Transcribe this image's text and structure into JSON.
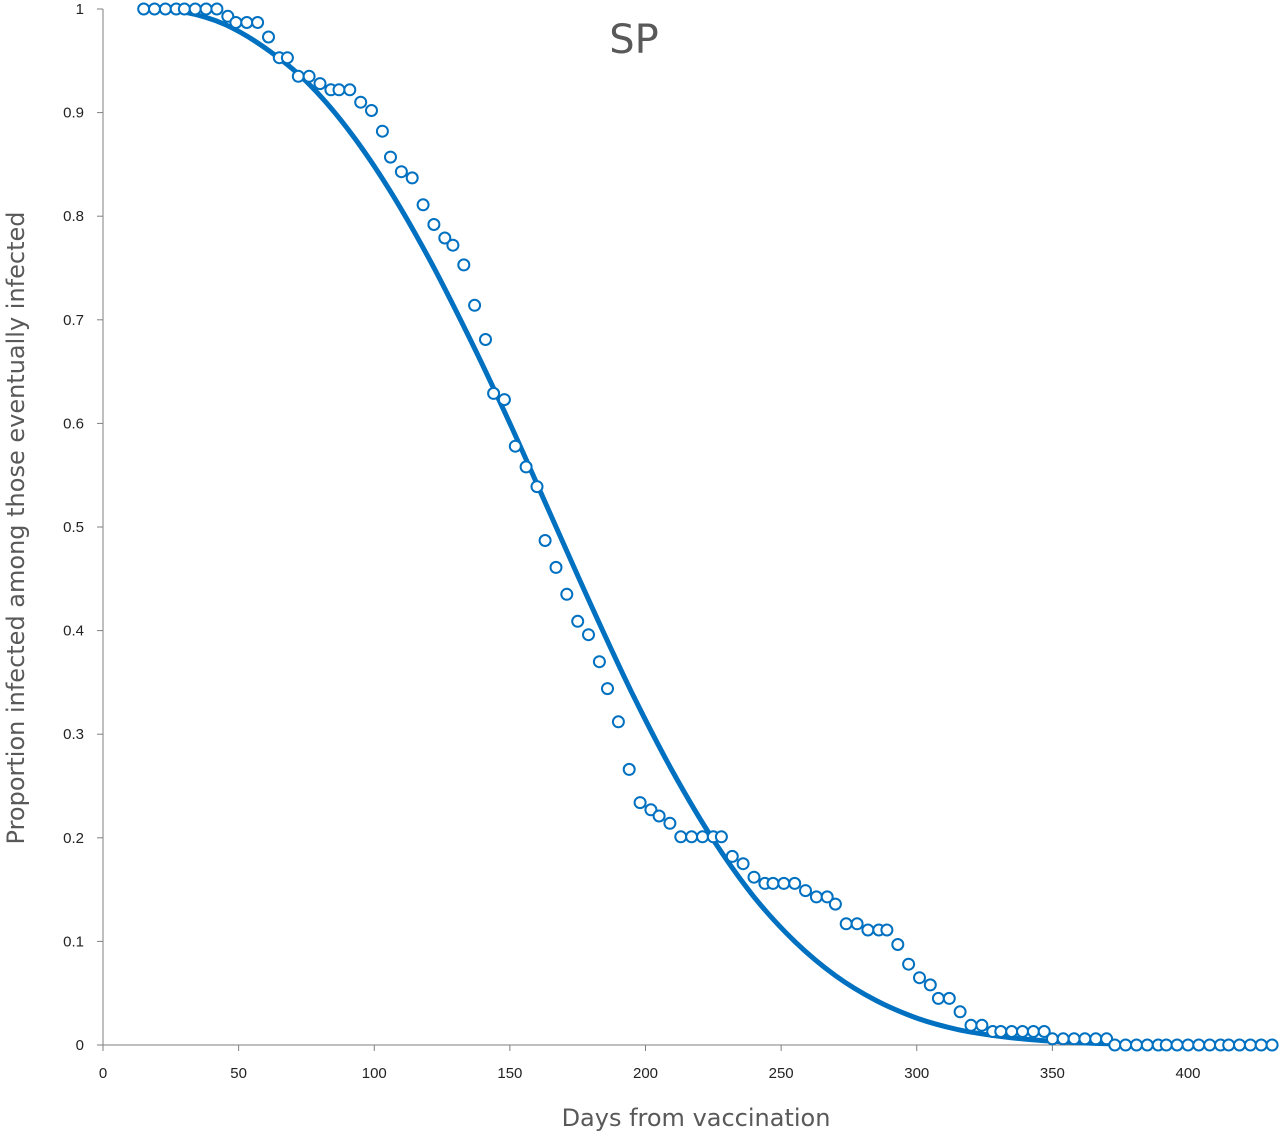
{
  "chart_data": {
    "type": "scatter",
    "title": "SP",
    "xlabel": "Days from vaccination",
    "ylabel": "Proportion infected among those eventually infected",
    "xlim": [
      0,
      430
    ],
    "ylim": [
      0,
      1
    ],
    "x_ticks": [
      0,
      50,
      100,
      150,
      200,
      250,
      300,
      350,
      400
    ],
    "x_tick_labels": [
      "0",
      "50",
      "100",
      "150",
      "200",
      "250",
      "300",
      "350",
      "400"
    ],
    "y_ticks": [
      0,
      0.1,
      0.2,
      0.3,
      0.4,
      0.5,
      0.6,
      0.7,
      0.8,
      0.9,
      1
    ],
    "y_tick_labels": [
      "0",
      "0.1",
      "0.2",
      "0.3",
      "0.4",
      "0.5",
      "0.6",
      "0.7",
      "0.8",
      "0.9",
      "1"
    ],
    "grid": false,
    "legend": "none",
    "colors": {
      "series": "#0070c0",
      "axis": "#7f7f7f",
      "text": "#595959"
    },
    "series": [
      {
        "kind": "markers",
        "marker": "open-circle",
        "x": [
          15,
          19,
          23,
          27,
          30,
          34,
          38,
          42,
          46,
          49,
          53,
          57,
          61,
          65,
          68,
          72,
          76,
          80,
          84,
          87,
          91,
          95,
          99,
          103,
          106,
          110,
          114,
          118,
          122,
          126,
          129,
          133,
          137,
          141,
          144,
          148,
          152,
          156,
          160,
          163,
          167,
          171,
          175,
          179,
          183,
          186,
          190,
          194,
          198,
          202,
          205,
          209,
          213,
          217,
          221,
          225,
          228,
          232,
          236,
          240,
          244,
          247,
          251,
          255,
          259,
          263,
          267,
          270,
          274,
          278,
          282,
          286,
          289,
          293,
          297,
          301,
          305,
          308,
          312,
          316,
          320,
          324,
          328,
          331,
          335,
          339,
          343,
          347,
          350,
          354,
          358,
          362,
          366,
          370,
          373,
          377,
          381,
          385,
          389,
          392,
          396,
          400,
          404,
          408,
          412,
          415,
          419,
          423,
          427,
          431
        ],
        "y": [
          1,
          1,
          1,
          1,
          1,
          1,
          1,
          1,
          0.993,
          0.987,
          0.987,
          0.987,
          0.973,
          0.953,
          0.953,
          0.935,
          0.935,
          0.928,
          0.922,
          0.922,
          0.922,
          0.91,
          0.902,
          0.882,
          0.857,
          0.843,
          0.837,
          0.811,
          0.792,
          0.779,
          0.772,
          0.753,
          0.714,
          0.681,
          0.629,
          0.623,
          0.578,
          0.558,
          0.539,
          0.487,
          0.461,
          0.435,
          0.409,
          0.396,
          0.37,
          0.344,
          0.312,
          0.266,
          0.234,
          0.227,
          0.221,
          0.214,
          0.201,
          0.201,
          0.201,
          0.201,
          0.201,
          0.182,
          0.175,
          0.162,
          0.156,
          0.156,
          0.156,
          0.156,
          0.149,
          0.143,
          0.143,
          0.136,
          0.117,
          0.117,
          0.111,
          0.111,
          0.111,
          0.097,
          0.078,
          0.065,
          0.058,
          0.045,
          0.045,
          0.032,
          0.019,
          0.019,
          0.013,
          0.013,
          0.013,
          0.013,
          0.013,
          0.013,
          0.006,
          0.006,
          0.006,
          0.006,
          0.006,
          0.006,
          0,
          0,
          0,
          0,
          0,
          0,
          0,
          0,
          0,
          0,
          0,
          0,
          0,
          0,
          0,
          0
        ]
      },
      {
        "kind": "line",
        "x": [
          15,
          30,
          45,
          60,
          75,
          90,
          105,
          120,
          135,
          150,
          165,
          180,
          195,
          210,
          225,
          240,
          255,
          270,
          285,
          300,
          315,
          330,
          345,
          360,
          375,
          390,
          405,
          420,
          430
        ],
        "y": [
          1,
          0.997,
          0.985,
          0.962,
          0.93,
          0.885,
          0.828,
          0.76,
          0.683,
          0.6,
          0.512,
          0.424,
          0.34,
          0.264,
          0.198,
          0.143,
          0.1,
          0.067,
          0.043,
          0.026,
          0.015,
          0.0085,
          0.0045,
          0.0022,
          0.001,
          0.0005,
          0.0002,
          0.0001,
          0
        ]
      }
    ]
  }
}
